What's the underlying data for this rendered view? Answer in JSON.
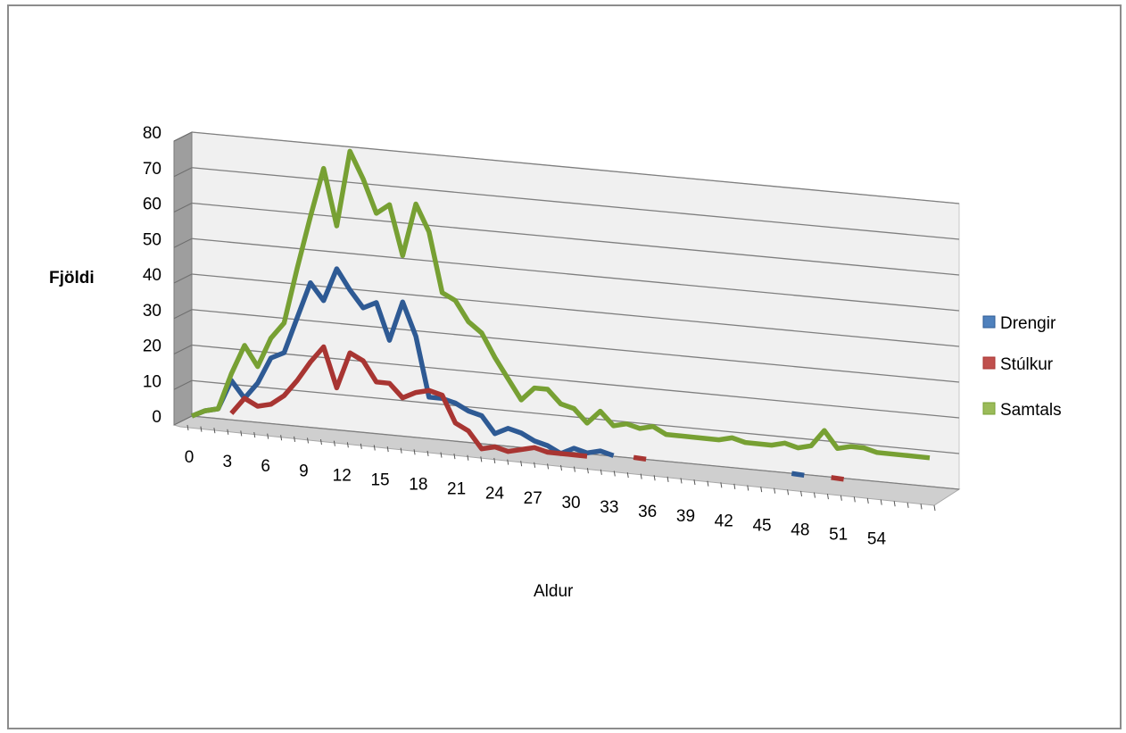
{
  "chart_data": {
    "type": "line",
    "subtype": "3d-line",
    "xlabel": "Aldur",
    "ylabel": "Fjöldi",
    "ylim": [
      0,
      80
    ],
    "yticks": [
      0,
      10,
      20,
      30,
      40,
      50,
      60,
      70,
      80
    ],
    "x": [
      0,
      1,
      2,
      3,
      4,
      5,
      6,
      7,
      8,
      9,
      10,
      11,
      12,
      13,
      14,
      15,
      16,
      17,
      18,
      19,
      20,
      21,
      22,
      23,
      24,
      25,
      26,
      27,
      28,
      29,
      30,
      31,
      32,
      33,
      34,
      35,
      36,
      37,
      38,
      39,
      40,
      41,
      42,
      43,
      44,
      45,
      46,
      47,
      48,
      49,
      50,
      51,
      52,
      53,
      54,
      55,
      56
    ],
    "xtick_labels": [
      "0",
      "3",
      "6",
      "9",
      "12",
      "15",
      "18",
      "21",
      "24",
      "27",
      "30",
      "33",
      "36",
      "39",
      "42",
      "45",
      "48",
      "51",
      "54"
    ],
    "xtick_values": [
      0,
      3,
      6,
      9,
      12,
      15,
      18,
      21,
      24,
      27,
      30,
      33,
      36,
      39,
      42,
      45,
      48,
      51,
      54
    ],
    "grid": true,
    "legend_position": "right",
    "series": [
      {
        "name": "Drengir",
        "color": "#4f81bd",
        "stroke": "#2e5a94",
        "values": [
          0,
          2,
          3,
          12,
          7,
          12,
          20,
          22,
          33,
          44,
          39,
          49,
          43,
          38,
          40,
          29,
          41,
          31,
          13,
          13,
          12,
          10,
          9,
          4,
          6,
          5,
          3,
          2,
          0,
          2,
          1,
          2,
          1,
          null,
          null,
          null,
          null,
          null,
          null,
          null,
          null,
          null,
          null,
          null,
          null,
          null,
          1,
          null,
          null,
          null,
          null,
          null,
          null,
          null,
          null,
          null,
          null
        ]
      },
      {
        "name": "Stúlkur",
        "color": "#c0504d",
        "stroke": "#a83532",
        "values": [
          null,
          null,
          null,
          2,
          7,
          5,
          6,
          9,
          14,
          20,
          25,
          13,
          24,
          22,
          16,
          16,
          12,
          14,
          15,
          14,
          6,
          4,
          -1,
          0,
          -1,
          0,
          1,
          0,
          0,
          0,
          0,
          null,
          null,
          null,
          1,
          null,
          null,
          null,
          null,
          null,
          null,
          null,
          null,
          null,
          null,
          null,
          null,
          null,
          null,
          1,
          null,
          null,
          null,
          null,
          null,
          null,
          null
        ]
      },
      {
        "name": "Samtals",
        "color": "#9bbb59",
        "stroke": "#77a033",
        "values": [
          0,
          2,
          3,
          14,
          23,
          17,
          26,
          31,
          48,
          64,
          79,
          62,
          85,
          77,
          67,
          70,
          55,
          71,
          63,
          45,
          43,
          37,
          34,
          27,
          21,
          15,
          19,
          19,
          15,
          14,
          10,
          14,
          10,
          11,
          10,
          11,
          9,
          9,
          9,
          9,
          9,
          10,
          9,
          9,
          9,
          10,
          9,
          10,
          15,
          10,
          11,
          11,
          10,
          10,
          10,
          10,
          10
        ]
      }
    ]
  }
}
